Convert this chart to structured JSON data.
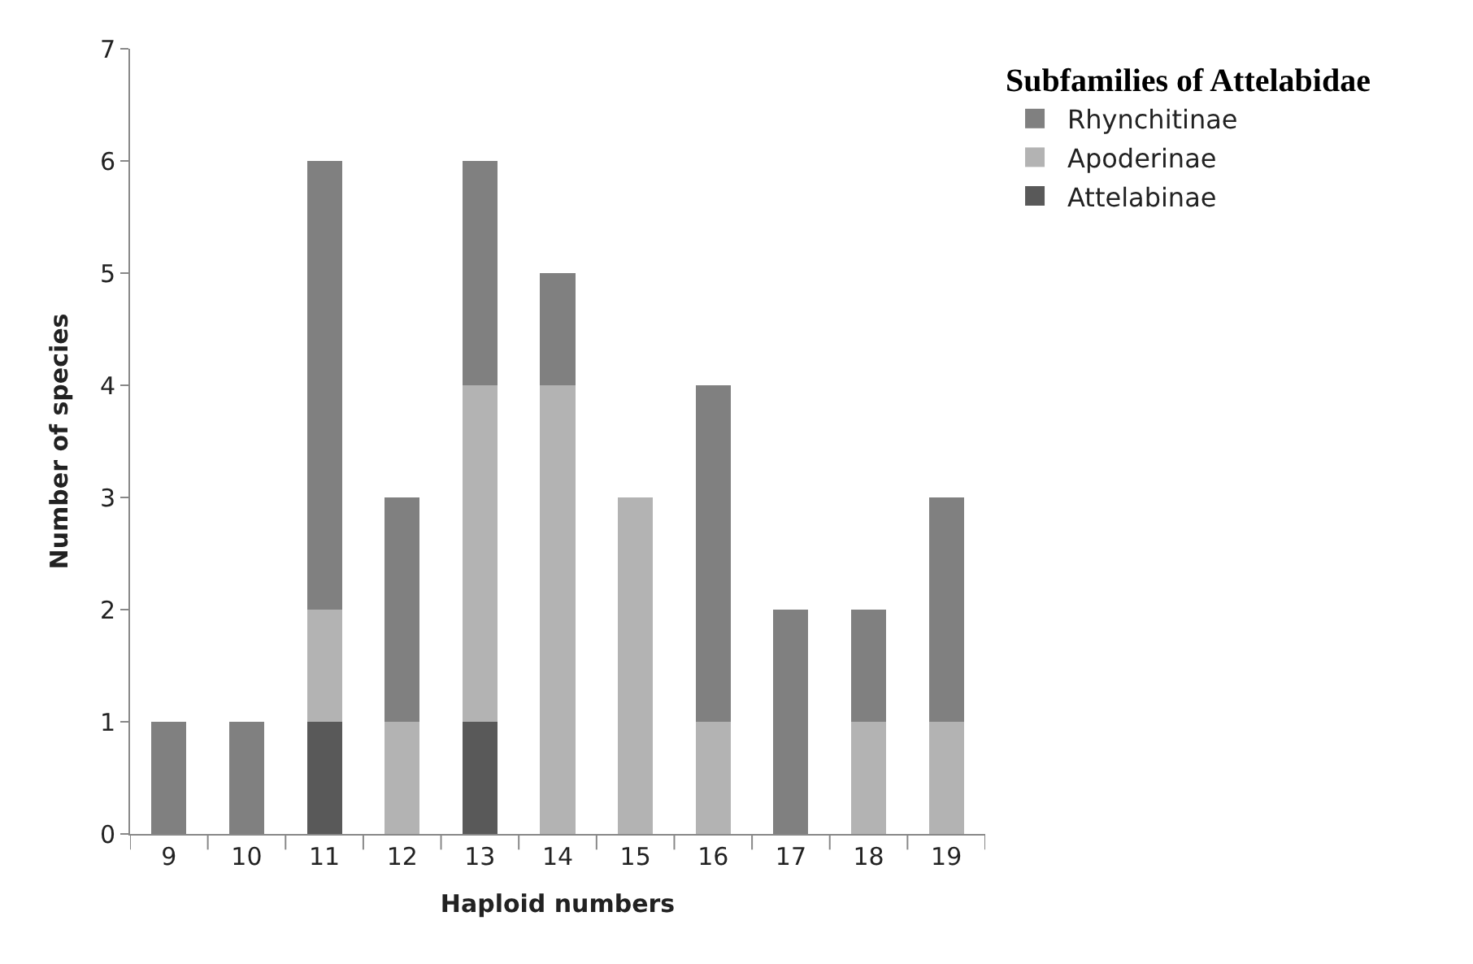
{
  "chart_data": {
    "type": "bar",
    "stacked": true,
    "xlabel": "Haploid numbers",
    "ylabel": "Number of species",
    "legend_title": "Subfamilies of Attelabidae",
    "legend": "top right",
    "categories": [
      "9",
      "10",
      "11",
      "12",
      "13",
      "14",
      "15",
      "16",
      "17",
      "18",
      "19"
    ],
    "series": [
      {
        "name": "Attelabinae",
        "color": "#595959",
        "values": [
          0,
          0,
          1,
          0,
          1,
          0,
          0,
          0,
          0,
          0,
          0
        ]
      },
      {
        "name": "Apoderinae",
        "color": "#b3b3b3",
        "values": [
          0,
          0,
          1,
          1,
          3,
          4,
          3,
          1,
          0,
          1,
          1
        ]
      },
      {
        "name": "Rhynchitinae",
        "color": "#808080",
        "values": [
          1,
          1,
          4,
          2,
          2,
          1,
          0,
          3,
          2,
          1,
          2
        ]
      }
    ],
    "ylim": [
      0,
      7
    ],
    "yticks": [
      0,
      1,
      2,
      3,
      4,
      5,
      6,
      7
    ]
  }
}
